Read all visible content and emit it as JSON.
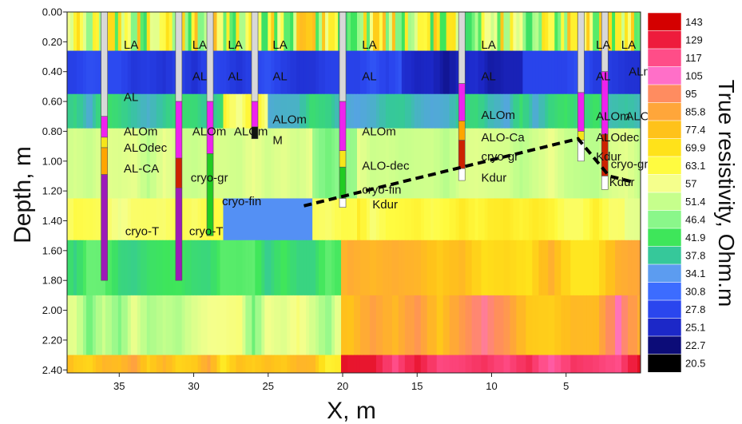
{
  "chart_data": {
    "type": "heatmap",
    "xlabel": "X, m",
    "ylabel": "Depth, m",
    "colorbar_label": "True resistivity, Ohm.m",
    "x_range": [
      38.5,
      0
    ],
    "y_range": [
      0,
      2.42
    ],
    "x_ticks": [
      35,
      30,
      25,
      20,
      15,
      10,
      5
    ],
    "x_tick_labels": [
      "35",
      "30",
      "25",
      "20",
      "15",
      "10",
      "5"
    ],
    "y_ticks": [
      0,
      0.2,
      0.4,
      0.6,
      0.8,
      1.0,
      1.2,
      1.4,
      1.6,
      1.8,
      2.0,
      2.2,
      2.4
    ],
    "y_tick_labels": [
      "0.00",
      "0.20",
      "0.40",
      "0.60",
      "0.80",
      "1.00",
      "1.20",
      "1.40",
      "1.60",
      "1.80",
      "2.00",
      "2.20",
      "2.40"
    ],
    "colorbar": {
      "levels": [
        "143",
        "129",
        "117",
        "105",
        "95",
        "85.8",
        "77.4",
        "69.9",
        "63.1",
        "57",
        "51.4",
        "46.4",
        "41.9",
        "37.8",
        "34.1",
        "30.8",
        "27.8",
        "25.1",
        "22.7",
        "20.5"
      ],
      "colors": [
        "#d40000",
        "#ee1c3c",
        "#ff4d88",
        "#ff6fc8",
        "#ff8c60",
        "#ffa63a",
        "#ffc21a",
        "#ffe21a",
        "#fffb40",
        "#f5ff8c",
        "#c6ff8c",
        "#8af78a",
        "#3ee65a",
        "#36c89a",
        "#5c9cf0",
        "#3c6cff",
        "#2a46ee",
        "#1c28c8",
        "#0c0c78",
        "#000000"
      ]
    },
    "layers": [
      {
        "depth_top": 0.0,
        "depth_bottom": 0.26,
        "resistivity": "mixed yellow / green / pink"
      },
      {
        "depth_top": 0.26,
        "depth_bottom": 0.55,
        "resistivity": "22.7 - 30.8"
      },
      {
        "depth_top": 0.55,
        "depth_bottom": 0.78,
        "resistivity": "30.8 - 46.4"
      },
      {
        "depth_top": 0.78,
        "depth_bottom": 1.25,
        "resistivity": "41.9 - 57"
      },
      {
        "depth_top": 1.25,
        "depth_bottom": 1.53,
        "resistivity": "46.4 - 69.9"
      },
      {
        "depth_top": 1.53,
        "depth_bottom": 1.9,
        "resistivity": "37.8 - 95"
      },
      {
        "depth_top": 1.9,
        "depth_bottom": 2.3,
        "resistivity": "41.9 - 129"
      },
      {
        "depth_top": 2.3,
        "depth_bottom": 2.42,
        "resistivity": "63.1 - 143"
      }
    ],
    "boreholes": [
      {
        "x": 36,
        "segments": [
          {
            "top": 0.0,
            "bottom": 0.7,
            "unit": "LA-AL",
            "color": "#d8d8d8"
          },
          {
            "top": 0.7,
            "bottom": 0.84,
            "unit": "ALOm",
            "color": "#ee22ee"
          },
          {
            "top": 0.84,
            "bottom": 0.91,
            "unit": "ALOdec",
            "color": "#f6e61a"
          },
          {
            "top": 0.91,
            "bottom": 1.09,
            "unit": "AL-CA",
            "color": "#ffa500"
          },
          {
            "top": 1.09,
            "bottom": 1.8,
            "unit": "cryo-T",
            "color": "#9d1ab8"
          }
        ]
      },
      {
        "x": 31,
        "segments": [
          {
            "top": 0.0,
            "bottom": 0.6,
            "unit": "LA-AL",
            "color": "#d8d8d8"
          },
          {
            "top": 0.6,
            "bottom": 0.98,
            "unit": "ALOm",
            "color": "#ee22ee"
          },
          {
            "top": 0.98,
            "bottom": 1.18,
            "unit": "cryo-gr",
            "color": "#cc2200"
          },
          {
            "top": 1.18,
            "bottom": 1.8,
            "unit": "cryo-T",
            "color": "#9d1ab8"
          }
        ]
      },
      {
        "x": 28.9,
        "segments": [
          {
            "top": 0.0,
            "bottom": 0.6,
            "unit": "LA-AL",
            "color": "#d8d8d8"
          },
          {
            "top": 0.6,
            "bottom": 0.95,
            "unit": "ALOm",
            "color": "#ee22ee"
          },
          {
            "top": 0.95,
            "bottom": 1.5,
            "unit": "cryo-fin",
            "color": "#22cc22"
          }
        ]
      },
      {
        "x": 25.9,
        "segments": [
          {
            "top": 0.0,
            "bottom": 0.6,
            "unit": "LA-AL",
            "color": "#d8d8d8"
          },
          {
            "top": 0.6,
            "bottom": 0.77,
            "unit": "ALOm",
            "color": "#ee22ee"
          },
          {
            "top": 0.77,
            "bottom": 0.85,
            "unit": "M",
            "color": "#111111"
          }
        ]
      },
      {
        "x": 20,
        "segments": [
          {
            "top": 0.0,
            "bottom": 0.6,
            "unit": "LA-AL",
            "color": "#d8d8d8"
          },
          {
            "top": 0.6,
            "bottom": 0.93,
            "unit": "ALOm",
            "color": "#ee22ee"
          },
          {
            "top": 0.93,
            "bottom": 1.04,
            "unit": "ALO-dec",
            "color": "#f6e61a"
          },
          {
            "top": 1.04,
            "bottom": 1.25,
            "unit": "cryo-fin",
            "color": "#22cc22"
          },
          {
            "top": 1.25,
            "bottom": 1.31,
            "unit": "Kdur",
            "color": "#ffffff"
          }
        ]
      },
      {
        "x": 12,
        "segments": [
          {
            "top": 0.0,
            "bottom": 0.48,
            "unit": "LA-AL",
            "color": "#d8d8d8"
          },
          {
            "top": 0.48,
            "bottom": 0.73,
            "unit": "ALOm",
            "color": "#ee22ee"
          },
          {
            "top": 0.73,
            "bottom": 0.86,
            "unit": "ALO-Ca",
            "color": "#ffa500"
          },
          {
            "top": 0.86,
            "bottom": 1.05,
            "unit": "cryo-gr",
            "color": "#cc2200"
          },
          {
            "top": 1.05,
            "bottom": 1.13,
            "unit": "Kdur",
            "color": "#ffffff"
          }
        ]
      },
      {
        "x": 4,
        "segments": [
          {
            "top": 0.0,
            "bottom": 0.54,
            "unit": "LA-AL",
            "color": "#d8d8d8"
          },
          {
            "top": 0.54,
            "bottom": 0.8,
            "unit": "ALOm",
            "color": "#ee22ee"
          },
          {
            "top": 0.8,
            "bottom": 0.86,
            "unit": "ALOdec",
            "color": "#f6e61a"
          },
          {
            "top": 0.86,
            "bottom": 1.0,
            "unit": "Kdur",
            "color": "#ffffff"
          }
        ]
      },
      {
        "x": 2.4,
        "segments": [
          {
            "top": 0.0,
            "bottom": 0.4,
            "unit": "LA-AL",
            "color": "#d8d8d8"
          },
          {
            "top": 0.4,
            "bottom": 0.82,
            "unit": "ALOm",
            "color": "#ee22ee"
          },
          {
            "top": 0.82,
            "bottom": 1.1,
            "unit": "cryo-gr",
            "color": "#cc2200"
          },
          {
            "top": 1.1,
            "bottom": 1.19,
            "unit": "Kdur",
            "color": "#ffffff"
          }
        ]
      }
    ],
    "labels": [
      {
        "text": "LA",
        "x": 34.7,
        "y": 0.22
      },
      {
        "text": "LA",
        "x": 30.1,
        "y": 0.22
      },
      {
        "text": "LA",
        "x": 27.7,
        "y": 0.22
      },
      {
        "text": "LA",
        "x": 24.7,
        "y": 0.22
      },
      {
        "text": "LA",
        "x": 18.7,
        "y": 0.22
      },
      {
        "text": "LA",
        "x": 10.7,
        "y": 0.22
      },
      {
        "text": "LA",
        "x": 3.0,
        "y": 0.22
      },
      {
        "text": "LA",
        "x": 1.3,
        "y": 0.22
      },
      {
        "text": "AL",
        "x": 34.7,
        "y": 0.57
      },
      {
        "text": "AL",
        "x": 30.1,
        "y": 0.43
      },
      {
        "text": "AL",
        "x": 27.7,
        "y": 0.43
      },
      {
        "text": "AL",
        "x": 24.7,
        "y": 0.43
      },
      {
        "text": "AL",
        "x": 18.7,
        "y": 0.43
      },
      {
        "text": "AL",
        "x": 10.7,
        "y": 0.43
      },
      {
        "text": "AL",
        "x": 3.0,
        "y": 0.43
      },
      {
        "text": "ALm",
        "x": 0.8,
        "y": 0.4
      },
      {
        "text": "ALOm",
        "x": 34.7,
        "y": 0.8
      },
      {
        "text": "ALOm",
        "x": 30.1,
        "y": 0.8
      },
      {
        "text": "ALOm",
        "x": 27.3,
        "y": 0.8
      },
      {
        "text": "ALOm",
        "x": 24.7,
        "y": 0.72
      },
      {
        "text": "ALOm",
        "x": 18.7,
        "y": 0.8
      },
      {
        "text": "ALOm",
        "x": 10.7,
        "y": 0.69
      },
      {
        "text": "ALOm",
        "x": 3.0,
        "y": 0.7
      },
      {
        "text": "ALOm",
        "x": 1.0,
        "y": 0.7
      },
      {
        "text": "ALOdec",
        "x": 34.7,
        "y": 0.91
      },
      {
        "text": "ALOdec",
        "x": 3.0,
        "y": 0.84
      },
      {
        "text": "M",
        "x": 24.7,
        "y": 0.86
      },
      {
        "text": "AL-CA",
        "x": 34.7,
        "y": 1.05
      },
      {
        "text": "ALO-dec",
        "x": 18.7,
        "y": 1.03
      },
      {
        "text": "ALO-Ca",
        "x": 10.7,
        "y": 0.84
      },
      {
        "text": "cryo-gr",
        "x": 30.2,
        "y": 1.11
      },
      {
        "text": "cryo-gr",
        "x": 10.7,
        "y": 0.97
      },
      {
        "text": "cryo-gr",
        "x": 2.0,
        "y": 1.02
      },
      {
        "text": "Kdur",
        "x": 3.0,
        "y": 0.97
      },
      {
        "text": "Kdur",
        "x": 10.7,
        "y": 1.11
      },
      {
        "text": "Kdur",
        "x": 18.0,
        "y": 1.29
      },
      {
        "text": "Kdur",
        "x": 2.1,
        "y": 1.14
      },
      {
        "text": "cryo-fin",
        "x": 28.1,
        "y": 1.27
      },
      {
        "text": "cryo-fin",
        "x": 18.7,
        "y": 1.19
      },
      {
        "text": "cryo-T",
        "x": 34.6,
        "y": 1.47
      },
      {
        "text": "cryo-T",
        "x": 30.3,
        "y": 1.47
      }
    ],
    "dashed_line": [
      {
        "x": 22.6,
        "y": 1.3
      },
      {
        "x": 4.2,
        "y": 0.85
      },
      {
        "x": 2.1,
        "y": 1.1
      },
      {
        "x": 0.5,
        "y": 1.14
      }
    ]
  }
}
